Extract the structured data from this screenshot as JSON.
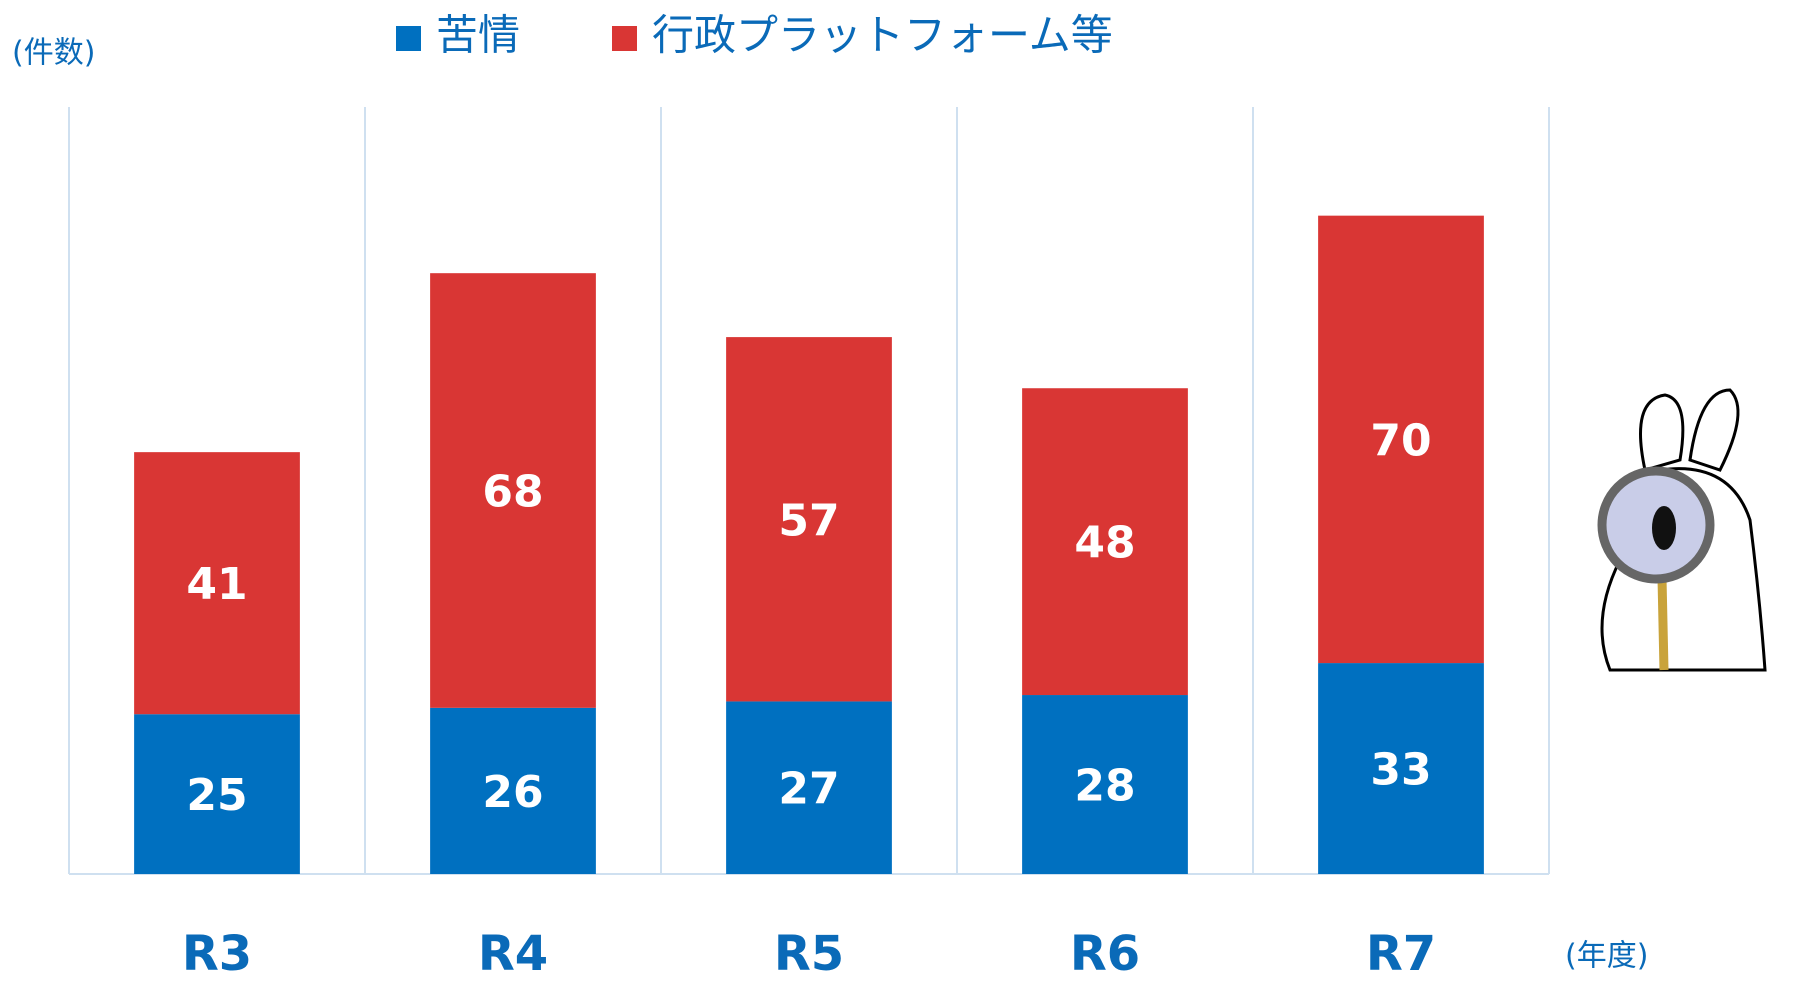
{
  "chart_data": {
    "type": "stacked_bar",
    "categories": [
      "R3",
      "R4",
      "R5",
      "R6",
      "R7"
    ],
    "series": [
      {
        "name": "苦情",
        "color": "#0070c0",
        "values": [
          25,
          26,
          27,
          28,
          33
        ]
      },
      {
        "name": "行政プラットフォーム等",
        "color": "#d93634",
        "values": [
          41,
          68,
          57,
          48,
          70
        ]
      }
    ],
    "y_label": "(件数)",
    "x_label": "(年度)",
    "ylim": [
      0,
      120
    ],
    "legend": "top"
  }
}
